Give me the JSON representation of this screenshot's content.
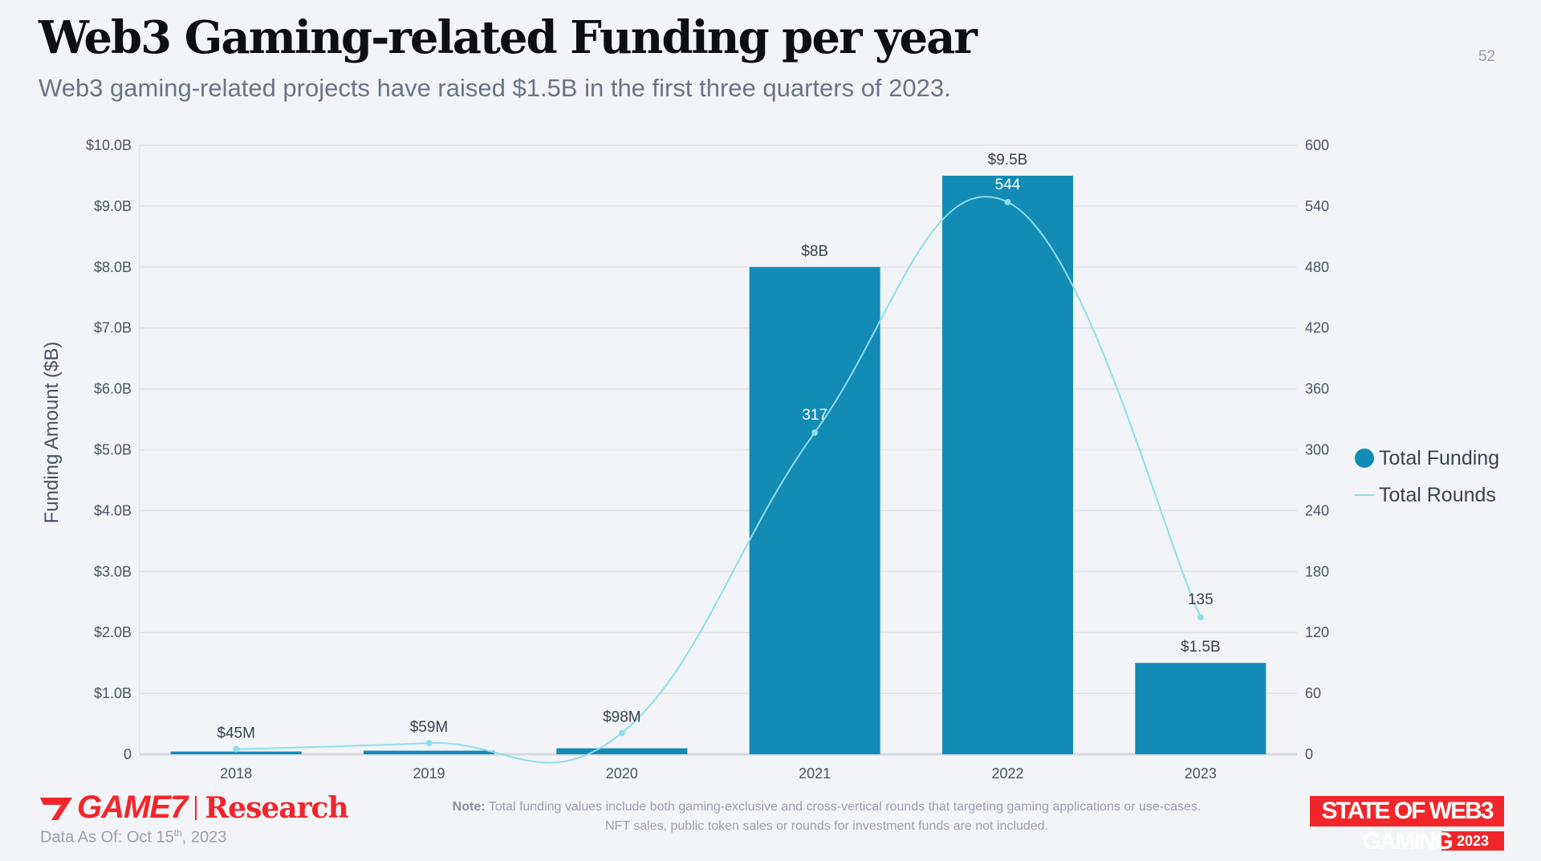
{
  "header": {
    "title": "Web3 Gaming-related Funding per year",
    "subtitle": "Web3 gaming-related projects have raised $1.5B in the first three quarters of 2023.",
    "page_number": "52"
  },
  "chart_data": {
    "type": "bar",
    "categories": [
      "2018",
      "2019",
      "2020",
      "2021",
      "2022",
      "2023"
    ],
    "series": [
      {
        "name": "Total Funding",
        "axis": "left",
        "type": "bar",
        "values": [
          0.045,
          0.059,
          0.098,
          8.0,
          9.5,
          1.5
        ],
        "labels": [
          "$45M",
          "$59M",
          "$98M",
          "$8B",
          "$9.5B",
          "$1.5B"
        ],
        "color": "#128bb5"
      },
      {
        "name": "Total Rounds",
        "axis": "right",
        "type": "line",
        "values": [
          5,
          11,
          21,
          317,
          544,
          135
        ],
        "labels": [
          "",
          "",
          "",
          "317",
          "544",
          "135"
        ],
        "color": "#8fdcec"
      }
    ],
    "ylabel": "Funding Amount ($B)",
    "ylim": [
      0,
      10
    ],
    "y_ticks": [
      "0",
      "$1.0B",
      "$2.0B",
      "$3.0B",
      "$4.0B",
      "$5.0B",
      "$6.0B",
      "$7.0B",
      "$8.0B",
      "$9.0B",
      "$10.0B"
    ],
    "y2lim": [
      0,
      600
    ],
    "y2_ticks": [
      "0",
      "60",
      "120",
      "180",
      "240",
      "300",
      "360",
      "420",
      "480",
      "540",
      "600"
    ],
    "grid": true,
    "legend": "right"
  },
  "footer": {
    "logo_game7": "GAME7",
    "logo_research": "Research",
    "as_of_prefix": "Data As Of: Oct 15",
    "as_of_sup": "th",
    "as_of_suffix": ", 2023",
    "note_label": "Note:",
    "note_line1": "Total funding values include both gaming-exclusive and cross-vertical rounds that targeting gaming applications or use-cases.",
    "note_line2": "NFT sales, public token sales or rounds for investment funds are not included.",
    "badge_text": "STATE OF WEB3 GAMING",
    "badge_year": "2023"
  }
}
